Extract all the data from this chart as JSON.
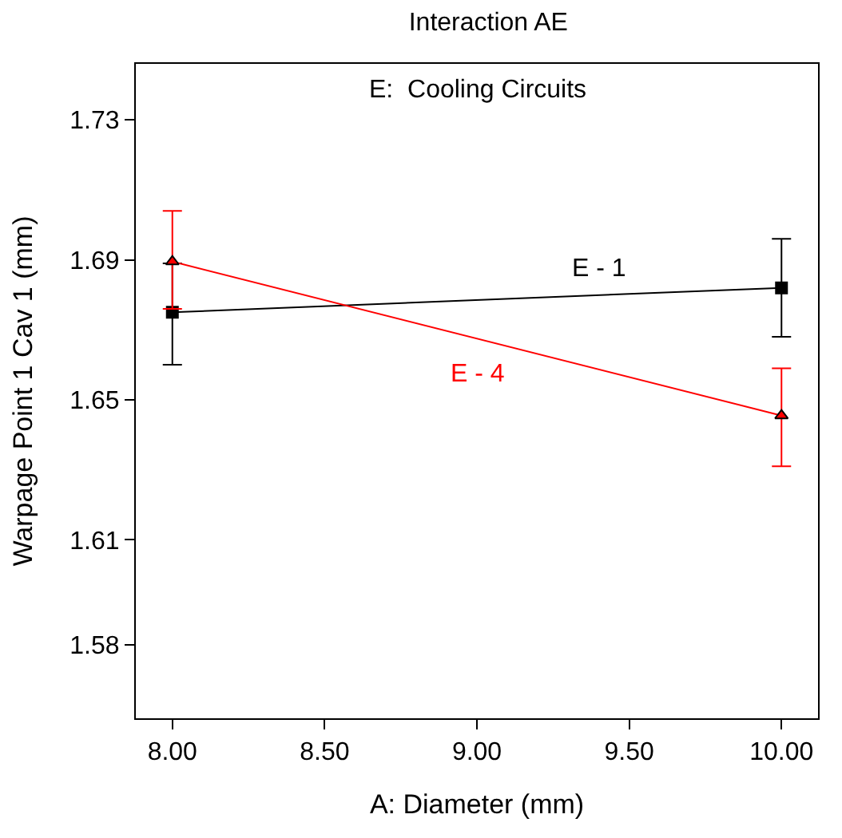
{
  "chart_data": {
    "type": "line",
    "title": "Interaction AE",
    "legend_title": "E:  Cooling Circuits",
    "xlabel": "A: Diameter (mm)",
    "ylabel": "Warpage Point 1 Cav 1 (mm)",
    "x": [
      8,
      10
    ],
    "series": [
      {
        "name": "E - 1",
        "color": "#000000",
        "marker": "square",
        "values": [
          1.675,
          1.682
        ],
        "errors": [
          [
            1.66,
            1.689
          ],
          [
            1.668,
            1.696
          ]
        ]
      },
      {
        "name": "E - 4",
        "color": "#ff0000",
        "marker": "triangle",
        "values": [
          1.6895,
          1.6455
        ],
        "errors": [
          [
            1.676,
            1.704
          ],
          [
            1.631,
            1.659
          ]
        ]
      }
    ],
    "xlim": [
      7.88,
      10.12
    ],
    "xticks": [
      {
        "value": 8,
        "label": "8.00"
      },
      {
        "value": 8.5,
        "label": "8.50"
      },
      {
        "value": 9,
        "label": "9.00"
      },
      {
        "value": 9.5,
        "label": "9.50"
      },
      {
        "value": 10,
        "label": "10.00"
      }
    ],
    "ylim": [
      1.559,
      1.746
    ],
    "yticks": [
      1.58,
      1.61,
      1.65,
      1.69,
      1.73
    ],
    "grid": false,
    "legend": false,
    "line_style": "solid"
  }
}
